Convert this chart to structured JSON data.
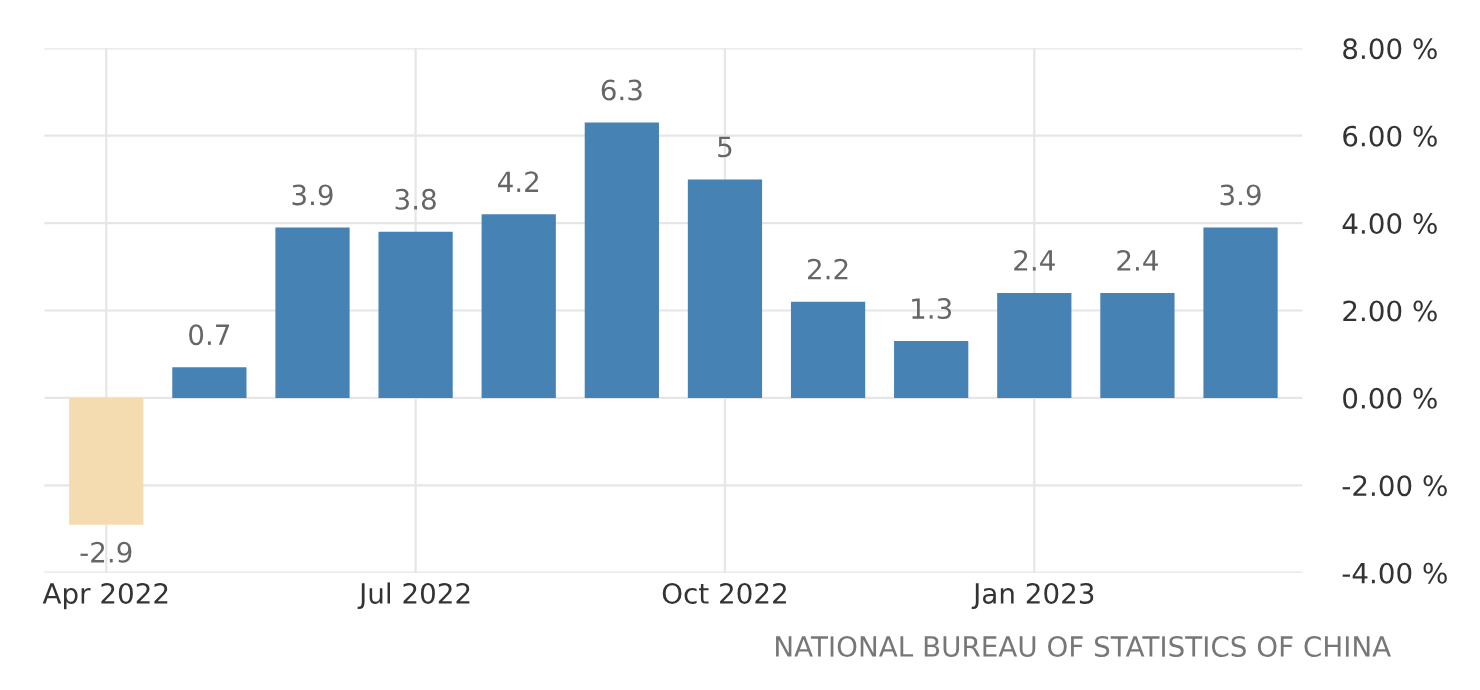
{
  "chart_data": {
    "type": "bar",
    "categories": [
      "Apr 2022",
      null,
      null,
      "Jul 2022",
      null,
      null,
      "Oct 2022",
      null,
      null,
      "Jan 2023",
      null,
      null
    ],
    "values": [
      -2.9,
      0.7,
      3.9,
      3.8,
      4.2,
      6.3,
      5,
      2.2,
      1.3,
      2.4,
      2.4,
      3.9
    ],
    "colors": [
      "#f4dcb0",
      "#4682b4",
      "#4682b4",
      "#4682b4",
      "#4682b4",
      "#4682b4",
      "#4682b4",
      "#4682b4",
      "#4682b4",
      "#4682b4",
      "#4682b4",
      "#4682b4"
    ],
    "ylim": [
      -4,
      8
    ],
    "yticks": [
      {
        "value": -4,
        "label": "-4.00 %"
      },
      {
        "value": -2,
        "label": "-2.00 %"
      },
      {
        "value": 0,
        "label": "0.00 %"
      },
      {
        "value": 2,
        "label": "2.00 %"
      },
      {
        "value": 4,
        "label": "4.00 %"
      },
      {
        "value": 6,
        "label": "6.00 %"
      },
      {
        "value": 8,
        "label": "8.00 %"
      }
    ],
    "grid": true,
    "data_labels": true,
    "annotations": [
      "NATIONAL BUREAU OF STATISTICS OF CHINA"
    ]
  }
}
